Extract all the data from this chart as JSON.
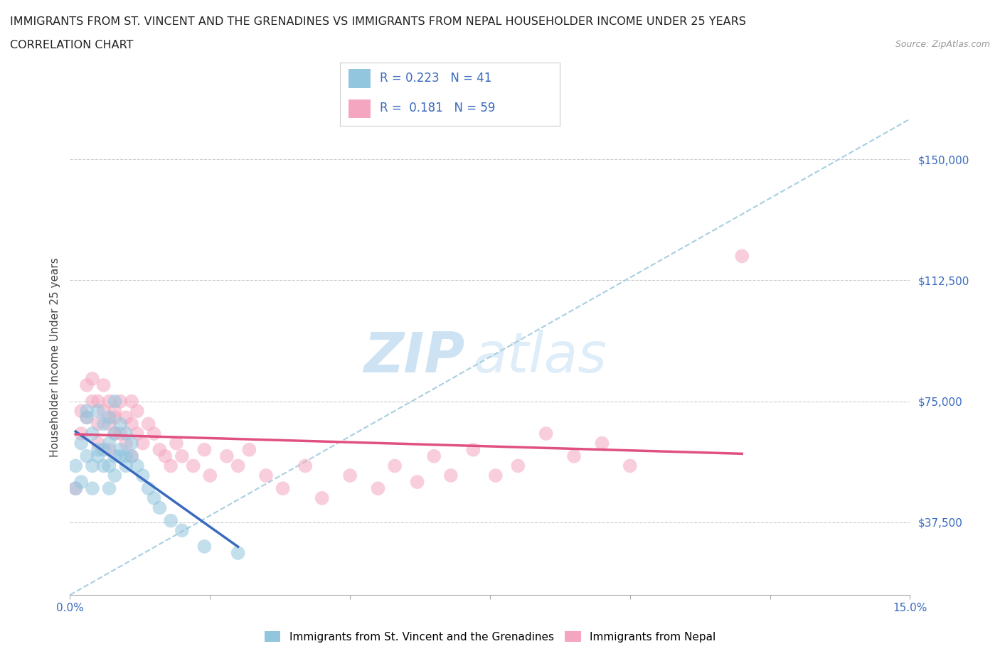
{
  "title_line1": "IMMIGRANTS FROM ST. VINCENT AND THE GRENADINES VS IMMIGRANTS FROM NEPAL HOUSEHOLDER INCOME UNDER 25 YEARS",
  "title_line2": "CORRELATION CHART",
  "source": "Source: ZipAtlas.com",
  "ylabel": "Householder Income Under 25 years",
  "xlim": [
    0.0,
    0.15
  ],
  "ylim": [
    15000,
    162500
  ],
  "xticks": [
    0.0,
    0.025,
    0.05,
    0.075,
    0.1,
    0.125,
    0.15
  ],
  "xticklabels": [
    "0.0%",
    "",
    "",
    "",
    "",
    "",
    "15.0%"
  ],
  "ytick_values": [
    37500,
    75000,
    112500,
    150000
  ],
  "ytick_labels": [
    "$37,500",
    "$75,000",
    "$112,500",
    "$150,000"
  ],
  "grid_color": "#cccccc",
  "background_color": "#ffffff",
  "watermark_zip": "ZIP",
  "watermark_atlas": "atlas",
  "legend_r1": "0.223",
  "legend_n1": "41",
  "legend_r2": "0.181",
  "legend_n2": "59",
  "color_blue": "#92c5de",
  "color_pink": "#f4a6c0",
  "series1_label": "Immigrants from St. Vincent and the Grenadines",
  "series2_label": "Immigrants from Nepal",
  "series1_x": [
    0.001,
    0.001,
    0.002,
    0.002,
    0.003,
    0.003,
    0.003,
    0.004,
    0.004,
    0.004,
    0.005,
    0.005,
    0.005,
    0.006,
    0.006,
    0.006,
    0.007,
    0.007,
    0.007,
    0.007,
    0.008,
    0.008,
    0.008,
    0.008,
    0.009,
    0.009,
    0.009,
    0.01,
    0.01,
    0.01,
    0.011,
    0.011,
    0.012,
    0.013,
    0.014,
    0.015,
    0.016,
    0.018,
    0.02,
    0.024,
    0.03
  ],
  "series1_y": [
    55000,
    48000,
    62000,
    50000,
    70000,
    58000,
    72000,
    65000,
    55000,
    48000,
    58000,
    72000,
    60000,
    55000,
    68000,
    60000,
    62000,
    55000,
    48000,
    70000,
    65000,
    58000,
    75000,
    52000,
    68000,
    60000,
    58000,
    65000,
    58000,
    55000,
    62000,
    58000,
    55000,
    52000,
    48000,
    45000,
    42000,
    38000,
    35000,
    30000,
    28000
  ],
  "series2_x": [
    0.001,
    0.002,
    0.002,
    0.003,
    0.003,
    0.004,
    0.004,
    0.005,
    0.005,
    0.005,
    0.006,
    0.006,
    0.007,
    0.007,
    0.007,
    0.008,
    0.008,
    0.008,
    0.009,
    0.009,
    0.01,
    0.01,
    0.011,
    0.011,
    0.011,
    0.012,
    0.012,
    0.013,
    0.014,
    0.015,
    0.016,
    0.017,
    0.018,
    0.019,
    0.02,
    0.022,
    0.024,
    0.025,
    0.028,
    0.03,
    0.032,
    0.035,
    0.038,
    0.042,
    0.045,
    0.05,
    0.055,
    0.058,
    0.062,
    0.065,
    0.068,
    0.072,
    0.076,
    0.08,
    0.085,
    0.09,
    0.095,
    0.1,
    0.12
  ],
  "series2_y": [
    48000,
    72000,
    65000,
    80000,
    70000,
    75000,
    82000,
    68000,
    75000,
    62000,
    72000,
    80000,
    68000,
    75000,
    60000,
    72000,
    65000,
    70000,
    75000,
    65000,
    70000,
    62000,
    75000,
    68000,
    58000,
    72000,
    65000,
    62000,
    68000,
    65000,
    60000,
    58000,
    55000,
    62000,
    58000,
    55000,
    60000,
    52000,
    58000,
    55000,
    60000,
    52000,
    48000,
    55000,
    45000,
    52000,
    48000,
    55000,
    50000,
    58000,
    52000,
    60000,
    52000,
    55000,
    65000,
    58000,
    62000,
    55000,
    120000
  ],
  "trendline1_color": "#3a6abf",
  "trendline2_color": "#e05080",
  "trend_dashed_color": "#a8cfe0"
}
